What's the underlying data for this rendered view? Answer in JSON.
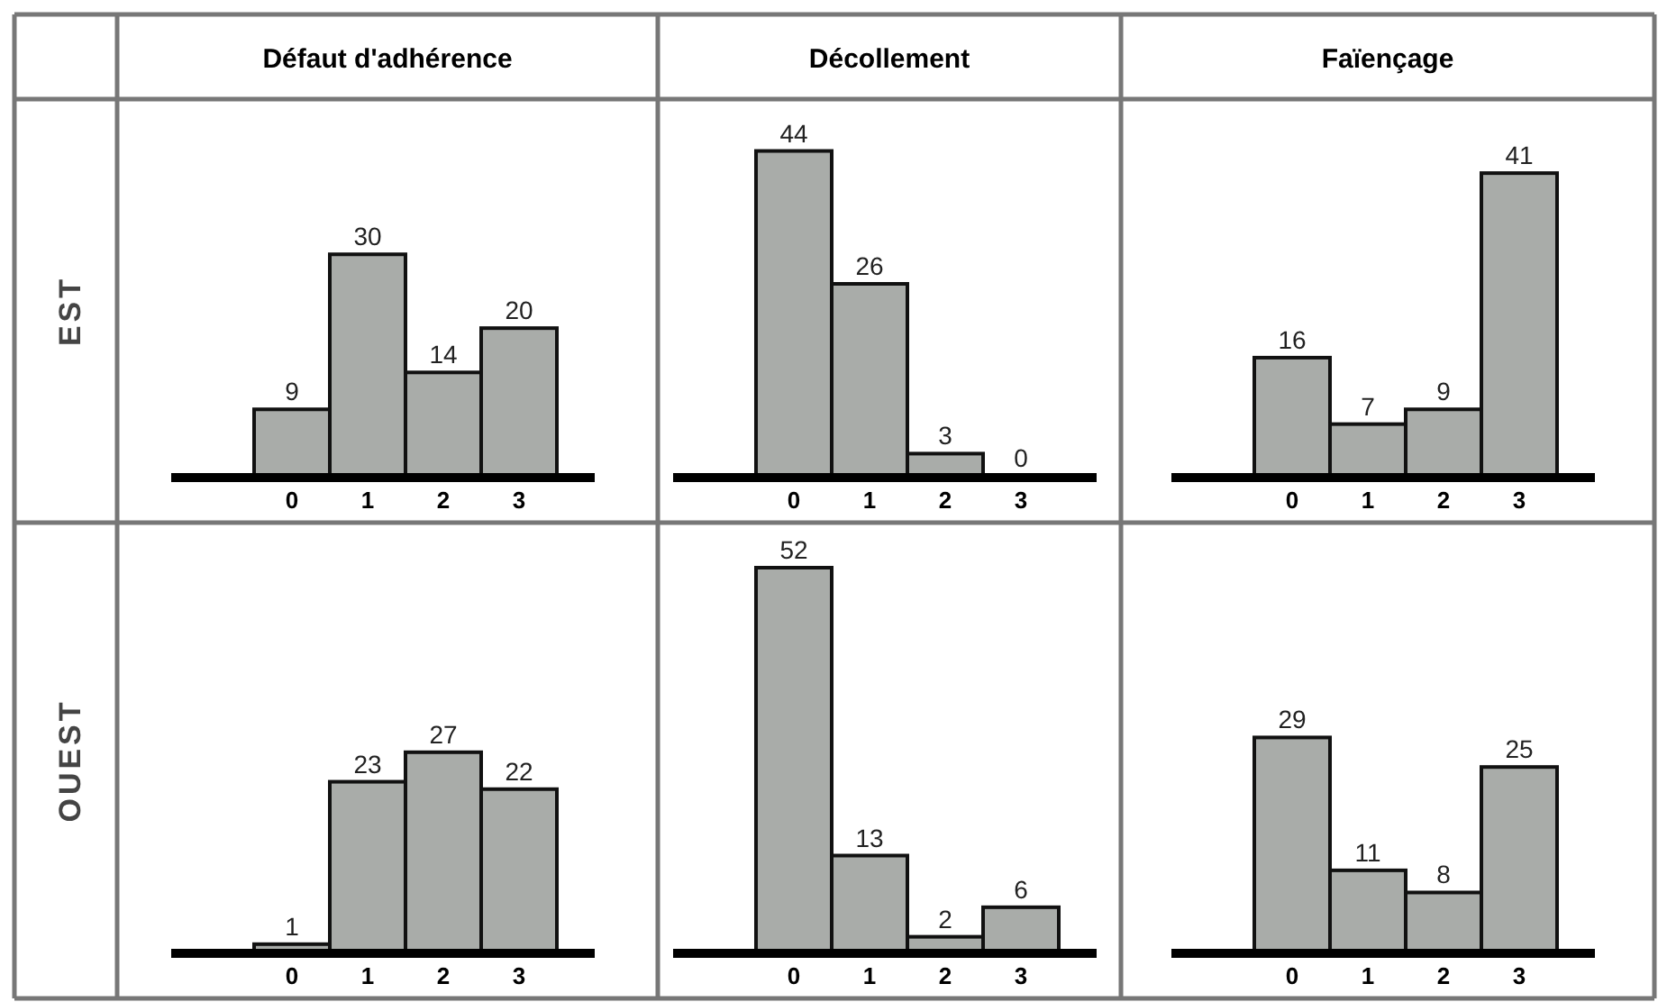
{
  "chart_data": [
    {
      "type": "bar",
      "title": "Défaut d'adhérence",
      "ylabel": "EST",
      "categories": [
        "0",
        "1",
        "2",
        "3"
      ],
      "values": [
        9,
        30,
        14,
        20
      ],
      "color": "#a9aca9",
      "data_labels": true,
      "tick_labels": "x"
    },
    {
      "type": "bar",
      "title": "Décollement",
      "categories": [
        "0",
        "1",
        "2",
        "3"
      ],
      "values": [
        44,
        26,
        3,
        0
      ],
      "color": "#a9aca9",
      "data_labels": true,
      "tick_labels": "x"
    },
    {
      "type": "bar",
      "title": "Faïençage",
      "categories": [
        "0",
        "1",
        "2",
        "3"
      ],
      "values": [
        16,
        7,
        9,
        41
      ],
      "color": "#a9aca9",
      "data_labels": true,
      "tick_labels": "x"
    },
    {
      "type": "bar",
      "ylabel": "OUEST",
      "categories": [
        "0",
        "1",
        "2",
        "3"
      ],
      "values": [
        1,
        23,
        27,
        22
      ],
      "color": "#a9aca9",
      "data_labels": true,
      "tick_labels": "x"
    },
    {
      "type": "bar",
      "categories": [
        "0",
        "1",
        "2",
        "3"
      ],
      "values": [
        52,
        13,
        2,
        6
      ],
      "color": "#a9aca9",
      "data_labels": true,
      "tick_labels": "x"
    },
    {
      "type": "bar",
      "categories": [
        "0",
        "1",
        "2",
        "3"
      ],
      "values": [
        29,
        11,
        8,
        25
      ],
      "color": "#a9aca9",
      "data_labels": true,
      "tick_labels": "x"
    }
  ]
}
